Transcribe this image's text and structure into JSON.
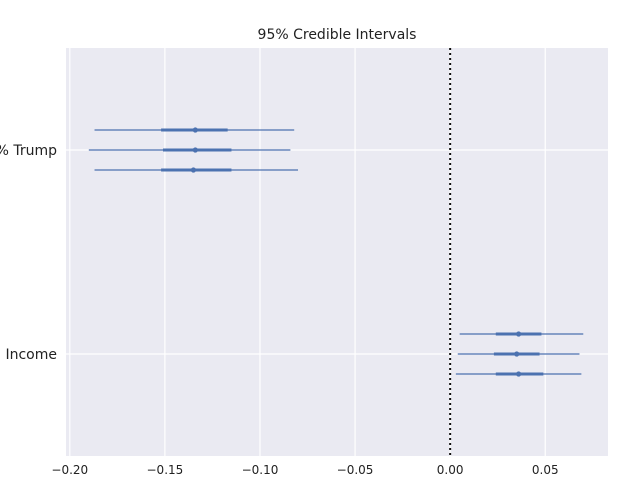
{
  "chart_data": {
    "type": "forest",
    "title": "95% Credible Intervals",
    "xlabel": "",
    "ylabel": "",
    "xlim": [
      -0.202,
      0.083
    ],
    "x_ticks": [
      -0.2,
      -0.15,
      -0.1,
      -0.05,
      0.0,
      0.05
    ],
    "x_tick_labels": [
      "−0.20",
      "−0.15",
      "−0.10",
      "−0.05",
      "0.00",
      "0.05"
    ],
    "reference_line": 0.0,
    "grid": true,
    "categories": [
      "% Trump",
      "Income"
    ],
    "chains": [
      {
        "category": "% Trump",
        "intervals": [
          {
            "low95": -0.187,
            "low50": -0.152,
            "median": -0.134,
            "high50": -0.117,
            "high95": -0.082
          },
          {
            "low95": -0.19,
            "low50": -0.151,
            "median": -0.134,
            "high50": -0.115,
            "high95": -0.084
          },
          {
            "low95": -0.187,
            "low50": -0.152,
            "median": -0.135,
            "high50": -0.115,
            "high95": -0.08
          }
        ]
      },
      {
        "category": "Income",
        "intervals": [
          {
            "low95": 0.005,
            "low50": 0.024,
            "median": 0.036,
            "high50": 0.048,
            "high95": 0.07
          },
          {
            "low95": 0.004,
            "low50": 0.023,
            "median": 0.035,
            "high50": 0.047,
            "high95": 0.068
          },
          {
            "low95": 0.003,
            "low50": 0.024,
            "median": 0.036,
            "high50": 0.049,
            "high95": 0.069
          }
        ]
      }
    ],
    "colors": {
      "background": "#eaeaf2",
      "grid": "#ffffff",
      "interval": "#4c72b0",
      "reference": "#111111"
    }
  }
}
